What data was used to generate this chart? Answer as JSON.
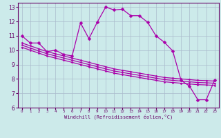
{
  "title": "",
  "xlabel": "Windchill (Refroidissement éolien,°C)",
  "ylabel": "",
  "bg_color": "#cceaea",
  "line_color": "#aa00aa",
  "markersize": 2.5,
  "linewidth": 0.9,
  "xlim": [
    -0.5,
    23.5
  ],
  "ylim": [
    6.0,
    13.3
  ],
  "yticks": [
    6,
    7,
    8,
    9,
    10,
    11,
    12,
    13
  ],
  "xticks": [
    0,
    1,
    2,
    3,
    4,
    5,
    6,
    7,
    8,
    9,
    10,
    11,
    12,
    13,
    14,
    15,
    16,
    17,
    18,
    19,
    20,
    21,
    22,
    23
  ],
  "grid_color": "#aabbcc",
  "series1_x": [
    0,
    1,
    2,
    3,
    4,
    5,
    6,
    7,
    8,
    9,
    10,
    11,
    12,
    13,
    14,
    15,
    16,
    17,
    18,
    19,
    20,
    21,
    22,
    23
  ],
  "series1_y": [
    11.0,
    10.5,
    10.5,
    9.9,
    10.0,
    9.7,
    9.6,
    11.9,
    10.8,
    11.95,
    13.0,
    12.8,
    12.85,
    12.4,
    12.4,
    11.95,
    11.0,
    10.55,
    9.95,
    7.9,
    7.5,
    6.55,
    6.55,
    7.9
  ],
  "series2_x": [
    0,
    1,
    2,
    3,
    4,
    5,
    6,
    7,
    8,
    9,
    10,
    11,
    12,
    13,
    14,
    15,
    16,
    17,
    18,
    19,
    20,
    21,
    22,
    23
  ],
  "series2_y": [
    10.5,
    10.3,
    10.1,
    9.9,
    9.75,
    9.6,
    9.45,
    9.3,
    9.15,
    9.0,
    8.85,
    8.7,
    8.6,
    8.5,
    8.4,
    8.3,
    8.2,
    8.1,
    8.05,
    8.0,
    7.95,
    7.9,
    7.88,
    7.85
  ],
  "series3_x": [
    0,
    1,
    2,
    3,
    4,
    5,
    6,
    7,
    8,
    9,
    10,
    11,
    12,
    13,
    14,
    15,
    16,
    17,
    18,
    19,
    20,
    21,
    22,
    23
  ],
  "series3_y": [
    10.35,
    10.15,
    9.95,
    9.75,
    9.6,
    9.45,
    9.3,
    9.15,
    9.0,
    8.85,
    8.7,
    8.55,
    8.45,
    8.35,
    8.25,
    8.15,
    8.05,
    7.95,
    7.9,
    7.85,
    7.8,
    7.75,
    7.73,
    7.7
  ],
  "series4_x": [
    0,
    1,
    2,
    3,
    4,
    5,
    6,
    7,
    8,
    9,
    10,
    11,
    12,
    13,
    14,
    15,
    16,
    17,
    18,
    19,
    20,
    21,
    22,
    23
  ],
  "series4_y": [
    10.2,
    10.0,
    9.8,
    9.6,
    9.45,
    9.3,
    9.15,
    9.0,
    8.85,
    8.7,
    8.55,
    8.4,
    8.3,
    8.2,
    8.1,
    8.0,
    7.9,
    7.8,
    7.75,
    7.7,
    7.65,
    7.6,
    7.58,
    7.55
  ]
}
